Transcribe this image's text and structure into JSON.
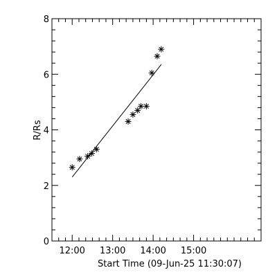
{
  "chart_data": {
    "type": "scatter",
    "title": "",
    "xlabel": "Start Time (09-Jun-25 11:30:07)",
    "ylabel": "R/Rs",
    "x_unit": "minutes",
    "xlim": [
      690,
      1000
    ],
    "ylim": [
      0,
      8
    ],
    "x_ticks": [
      {
        "value": 720,
        "label": "12:00"
      },
      {
        "value": 780,
        "label": "13:00"
      },
      {
        "value": 840,
        "label": "14:00"
      },
      {
        "value": 900,
        "label": "15:00"
      }
    ],
    "x_minor_step": 10,
    "y_ticks": [
      {
        "value": 0,
        "label": "0"
      },
      {
        "value": 2,
        "label": "2"
      },
      {
        "value": 4,
        "label": "4"
      },
      {
        "value": 6,
        "label": "6"
      },
      {
        "value": 8,
        "label": "8"
      }
    ],
    "y_minor_step": 0.4,
    "grid": false,
    "marker": "asterisk",
    "series": [
      {
        "x": [
          720,
          731,
          743,
          749,
          756,
          803,
          810,
          817,
          822,
          830,
          838,
          846,
          852
        ],
        "y": [
          2.65,
          2.95,
          3.05,
          3.15,
          3.3,
          4.3,
          4.55,
          4.7,
          4.85,
          4.85,
          6.05,
          6.65,
          6.9
        ]
      }
    ],
    "fit_line": {
      "x": [
        720,
        852
      ],
      "y": [
        2.3,
        6.35
      ]
    },
    "color": "#000000"
  }
}
